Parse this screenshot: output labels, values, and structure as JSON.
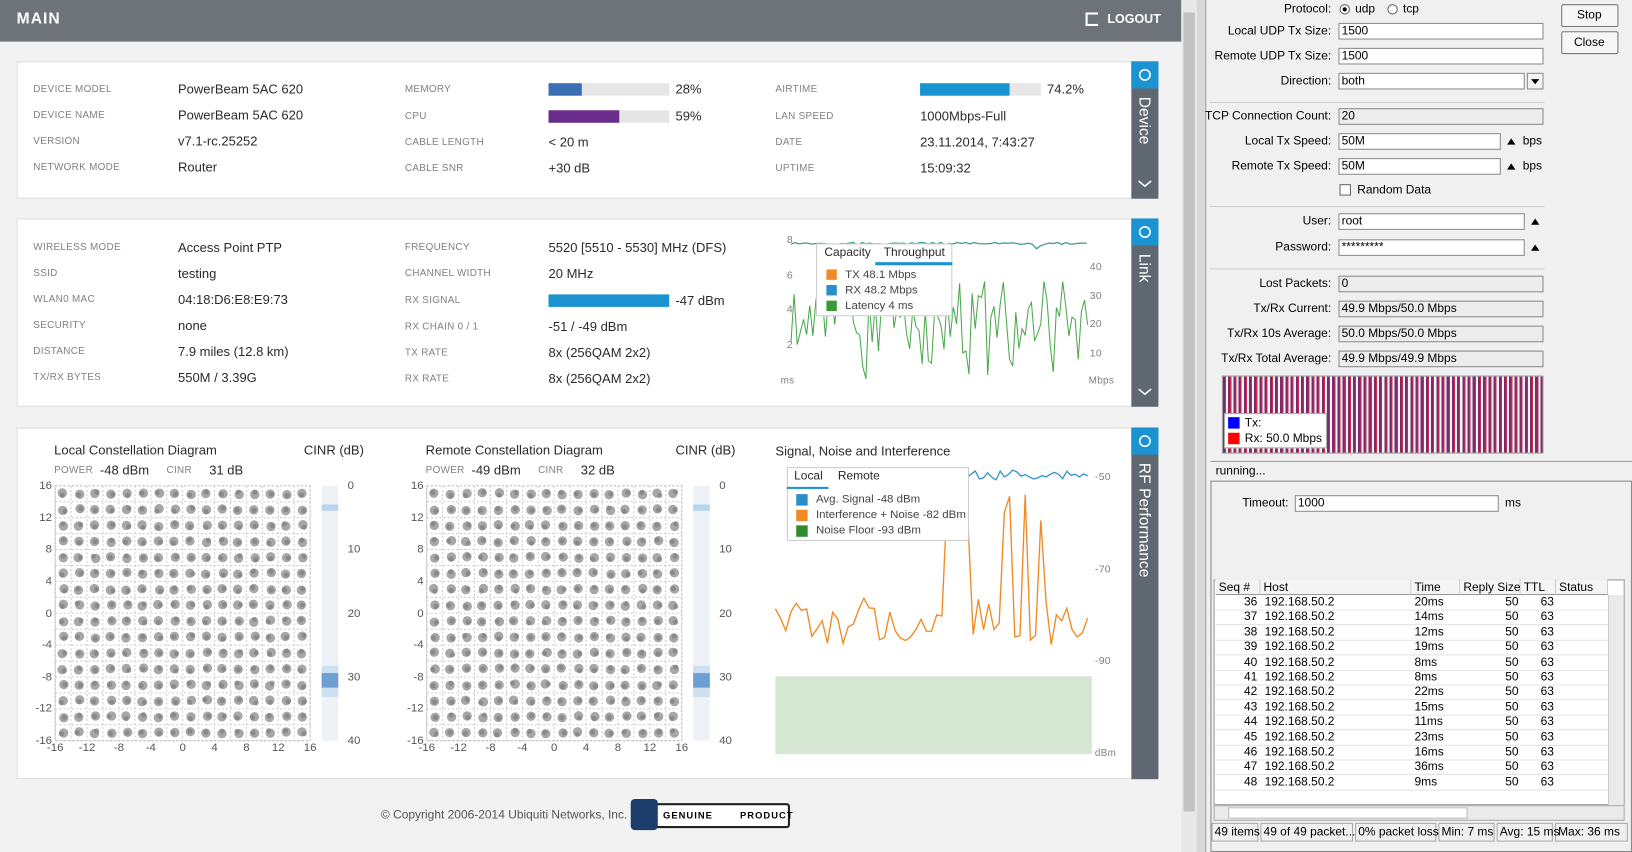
{
  "header": {
    "title": "MAIN",
    "logout": "LOGOUT"
  },
  "device": {
    "tab": "Device",
    "columns": [
      [
        {
          "label": "DEVICE MODEL",
          "value": "PowerBeam 5AC 620"
        },
        {
          "label": "DEVICE NAME",
          "value": "PowerBeam 5AC 620"
        },
        {
          "label": "VERSION",
          "value": "v7.1-rc.25252"
        },
        {
          "label": "NETWORK MODE",
          "value": "Router"
        }
      ],
      [
        {
          "label": "MEMORY",
          "percent": 28,
          "text": "28%",
          "color": "#3b6fb3"
        },
        {
          "label": "CPU",
          "percent": 59,
          "text": "59%",
          "color": "#6b2d8c"
        },
        {
          "label": "CABLE LENGTH",
          "value": "< 20 m"
        },
        {
          "label": "CABLE SNR",
          "value": "+30 dB"
        }
      ],
      [
        {
          "label": "AIRTIME",
          "percent": 74.2,
          "text": "74.2%",
          "color": "#1b93d1"
        },
        {
          "label": "LAN SPEED",
          "value": "1000Mbps-Full"
        },
        {
          "label": "DATE",
          "value": "23.11.2014, 7:43:27"
        },
        {
          "label": "UPTIME",
          "value": "15:09:32"
        }
      ]
    ]
  },
  "link": {
    "tab": "Link",
    "columns": [
      [
        {
          "label": "WIRELESS MODE",
          "value": "Access Point PTP"
        },
        {
          "label": "SSID",
          "value": "testing"
        },
        {
          "label": "WLAN0 MAC",
          "value": "04:18:D6:E8:E9:73"
        },
        {
          "label": "SECURITY",
          "value": "none"
        },
        {
          "label": "DISTANCE",
          "value": "7.9 miles (12.8 km)"
        },
        {
          "label": "TX/RX BYTES",
          "value": "550M / 3.39G"
        }
      ],
      [
        {
          "label": "FREQUENCY",
          "value": "5520 [5510 - 5530] MHz (DFS)"
        },
        {
          "label": "CHANNEL WIDTH",
          "value": "20 MHz"
        },
        {
          "label": "RX SIGNAL",
          "value": "-47 dBm",
          "color": "#1b93d1"
        },
        {
          "label": "RX CHAIN 0 / 1",
          "value": "-51 / -49 dBm"
        },
        {
          "label": "TX RATE",
          "value": "8x (256QAM 2x2)"
        },
        {
          "label": "RX RATE",
          "value": "8x (256QAM 2x2)"
        }
      ]
    ],
    "chart": {
      "tabs": [
        "Capacity",
        "Throughput"
      ],
      "legend": [
        {
          "label": "TX 48.1 Mbps",
          "color": "#f08a24"
        },
        {
          "label": "RX 48.2 Mbps",
          "color": "#2a8fc9"
        },
        {
          "label": "Latency 4 ms",
          "color": "#3a9a3a"
        }
      ],
      "left_ticks": [
        8,
        6,
        4,
        2
      ],
      "right_ticks": [
        40,
        30,
        20,
        10
      ],
      "left_unit": "ms",
      "right_unit": "Mbps"
    }
  },
  "rf": {
    "tab": "RF Performance",
    "diagrams": [
      {
        "title": "Local Constellation Diagram",
        "cinr_title": "CINR (dB)",
        "power_label": "POWER",
        "power": "-48 dBm",
        "cinr_label": "CINR",
        "cinr": "31 dB"
      },
      {
        "title": "Remote Constellation Diagram",
        "cinr_title": "CINR (dB)",
        "power_label": "POWER",
        "power": "-49 dBm",
        "cinr_label": "CINR",
        "cinr": "32 dB"
      }
    ],
    "axis_ticks": [
      16,
      12,
      8,
      4,
      0,
      -4,
      -8,
      -12,
      -16
    ],
    "cinr_ticks": [
      0,
      10,
      20,
      30,
      40
    ],
    "signal": {
      "title": "Signal, Noise and Interference",
      "tabs": [
        "Local",
        "Remote"
      ],
      "legend": [
        {
          "label": "Avg. Signal -48 dBm",
          "color": "#2a8fc9"
        },
        {
          "label": "Interference + Noise -82 dBm",
          "color": "#f08a24"
        },
        {
          "label": "Noise Floor -93 dBm",
          "color": "#2e8b2e"
        }
      ],
      "ticks": [
        -50,
        -70,
        -90
      ],
      "unit": "dBm"
    }
  },
  "footer": {
    "copyright": "© Copyright 2006-2014 Ubiquiti Networks, Inc.",
    "badge_left": "GENUINE",
    "badge_right": "PRODUCT"
  },
  "winbox": {
    "protocol_label": "Protocol:",
    "protocols": [
      "udp",
      "tcp"
    ],
    "fields": [
      {
        "label": "Local UDP Tx Size:",
        "value": "1500"
      },
      {
        "label": "Remote UDP Tx Size:",
        "value": "1500"
      },
      {
        "label": "Direction:",
        "value": "both"
      },
      {
        "label": "TCP Connection Count:",
        "value": "20"
      },
      {
        "label": "Local Tx Speed:",
        "value": "50M",
        "unit": "bps"
      },
      {
        "label": "Remote Tx Speed:",
        "value": "50M",
        "unit": "bps"
      },
      {
        "label": "User:",
        "value": "root"
      },
      {
        "label": "Password:",
        "value": "*********"
      },
      {
        "label": "Lost Packets:",
        "value": "0"
      },
      {
        "label": "Tx/Rx Current:",
        "value": "49.9 Mbps/50.0 Mbps"
      },
      {
        "label": "Tx/Rx 10s Average:",
        "value": "50.0 Mbps/50.0 Mbps"
      },
      {
        "label": "Tx/Rx Total Average:",
        "value": "49.9 Mbps/49.9 Mbps"
      }
    ],
    "random_data": "Random Data",
    "buttons": [
      "Stop",
      "Close"
    ],
    "graph_legend": [
      "Tx:",
      "Rx:  50.0 Mbps"
    ],
    "status": "running...",
    "ping": {
      "timeout_label": "Timeout:",
      "timeout": "1000",
      "timeout_unit": "ms",
      "columns": [
        "Seq #",
        "Host",
        "Time",
        "Reply Size",
        "TTL",
        "Status"
      ],
      "rows": [
        [
          36,
          "192.168.50.2",
          "20ms",
          50,
          63
        ],
        [
          37,
          "192.168.50.2",
          "14ms",
          50,
          63
        ],
        [
          38,
          "192.168.50.2",
          "12ms",
          50,
          63
        ],
        [
          39,
          "192.168.50.2",
          "19ms",
          50,
          63
        ],
        [
          40,
          "192.168.50.2",
          "8ms",
          50,
          63
        ],
        [
          41,
          "192.168.50.2",
          "8ms",
          50,
          63
        ],
        [
          42,
          "192.168.50.2",
          "22ms",
          50,
          63
        ],
        [
          43,
          "192.168.50.2",
          "15ms",
          50,
          63
        ],
        [
          44,
          "192.168.50.2",
          "11ms",
          50,
          63
        ],
        [
          45,
          "192.168.50.2",
          "23ms",
          50,
          63
        ],
        [
          46,
          "192.168.50.2",
          "16ms",
          50,
          63
        ],
        [
          47,
          "192.168.50.2",
          "36ms",
          50,
          63
        ],
        [
          48,
          "192.168.50.2",
          "9ms",
          50,
          63
        ]
      ],
      "statusbar": [
        "49 items",
        "49 of 49 packet...",
        "0% packet loss",
        "Min: 7 ms",
        "Avg: 15 ms",
        "Max: 36 ms"
      ]
    }
  }
}
